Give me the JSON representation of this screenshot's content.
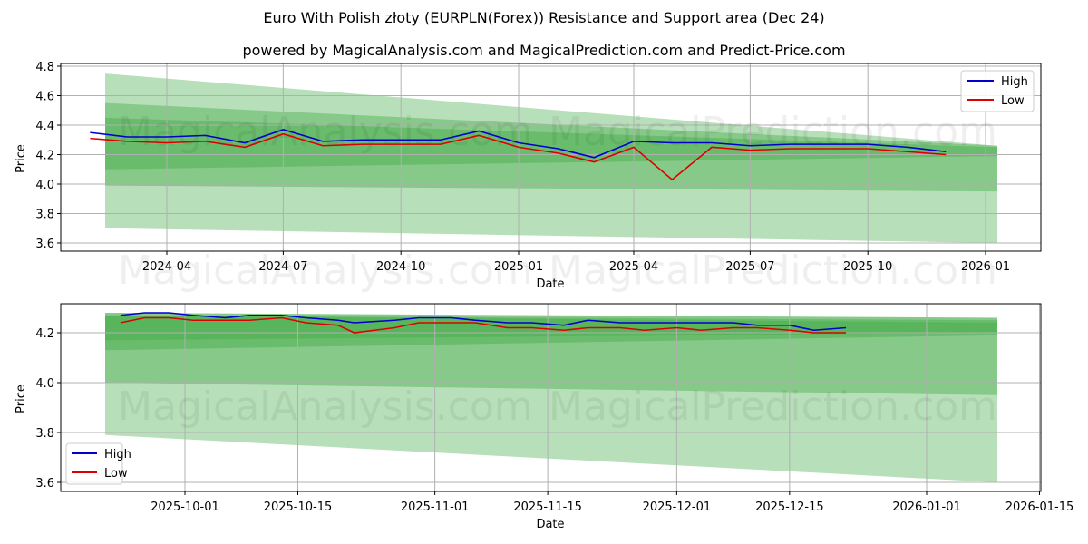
{
  "header": {
    "title": "Euro With Polish złoty (EURPLN(Forex)) Resistance and Support area (Dec 24)",
    "subtitle": "powered by MagicalAnalysis.com and MagicalPrediction.com and Predict-Price.com"
  },
  "watermarks": [
    "MagicalAnalysis.com",
    "MagicalPrediction.com"
  ],
  "colors": {
    "high": "#0000cc",
    "low": "#dd0000",
    "band": "#4caf50",
    "grid": "#b0b0b0"
  },
  "chart_data": [
    {
      "type": "line",
      "title": "Euro With Polish złoty (EURPLN(Forex)) Resistance and Support area (Dec 24)",
      "xlabel": "Date",
      "ylabel": "Price",
      "ylim": [
        3.55,
        4.82
      ],
      "yticks": [
        "3.6",
        "3.8",
        "4.0",
        "4.2",
        "4.4",
        "4.6",
        "4.8"
      ],
      "xticks": [
        "2024-04",
        "2024-07",
        "2024-10",
        "2025-01",
        "2025-04",
        "2025-07",
        "2025-10",
        "2026-01"
      ],
      "legend": {
        "position": "upper right",
        "entries": [
          "High",
          "Low"
        ]
      },
      "grid": true,
      "x": [
        "2024-02",
        "2024-03",
        "2024-04",
        "2024-05",
        "2024-06",
        "2024-07",
        "2024-08",
        "2024-09",
        "2024-10",
        "2024-11",
        "2024-12",
        "2025-01",
        "2025-02",
        "2025-03",
        "2025-04",
        "2025-05",
        "2025-06",
        "2025-07",
        "2025-08",
        "2025-09",
        "2025-10",
        "2025-11",
        "2025-12"
      ],
      "series": [
        {
          "name": "High",
          "values": [
            4.35,
            4.32,
            4.32,
            4.33,
            4.28,
            4.37,
            4.29,
            4.3,
            4.3,
            4.3,
            4.36,
            4.28,
            4.24,
            4.18,
            4.29,
            4.28,
            4.28,
            4.26,
            4.27,
            4.27,
            4.27,
            4.25,
            4.22
          ]
        },
        {
          "name": "Low",
          "values": [
            4.31,
            4.29,
            4.28,
            4.29,
            4.25,
            4.34,
            4.26,
            4.27,
            4.27,
            4.27,
            4.33,
            4.25,
            4.21,
            4.15,
            4.25,
            4.03,
            4.25,
            4.23,
            4.24,
            4.24,
            4.24,
            4.22,
            4.2
          ]
        }
      ],
      "bands": [
        {
          "name": "outer",
          "start": [
            3.7,
            4.75
          ],
          "end": [
            3.6,
            4.26
          ]
        },
        {
          "name": "mid",
          "start": [
            3.99,
            4.55
          ],
          "end": [
            3.95,
            4.26
          ]
        },
        {
          "name": "inner",
          "start": [
            4.1,
            4.45
          ],
          "end": [
            4.19,
            4.25
          ]
        }
      ]
    },
    {
      "type": "line",
      "xlabel": "Date",
      "ylabel": "Price",
      "ylim": [
        3.56,
        4.31
      ],
      "yticks": [
        "3.6",
        "3.8",
        "4.0",
        "4.2"
      ],
      "xticks": [
        "2025-10-01",
        "2025-10-15",
        "2025-11-01",
        "2025-11-15",
        "2025-12-01",
        "2025-12-15",
        "2026-01-01",
        "2026-01-15"
      ],
      "legend": {
        "position": "lower left",
        "entries": [
          "High",
          "Low"
        ]
      },
      "grid": true,
      "x": [
        "2025-09-23",
        "2025-09-26",
        "2025-09-29",
        "2025-10-02",
        "2025-10-06",
        "2025-10-09",
        "2025-10-13",
        "2025-10-16",
        "2025-10-20",
        "2025-10-22",
        "2025-10-27",
        "2025-10-30",
        "2025-11-03",
        "2025-11-06",
        "2025-11-10",
        "2025-11-13",
        "2025-11-17",
        "2025-11-20",
        "2025-11-24",
        "2025-11-27",
        "2025-12-01",
        "2025-12-04",
        "2025-12-08",
        "2025-12-11",
        "2025-12-15",
        "2025-12-18",
        "2025-12-22"
      ],
      "series": [
        {
          "name": "High",
          "values": [
            4.27,
            4.28,
            4.28,
            4.27,
            4.26,
            4.27,
            4.27,
            4.26,
            4.25,
            4.24,
            4.25,
            4.26,
            4.26,
            4.25,
            4.24,
            4.24,
            4.23,
            4.25,
            4.24,
            4.24,
            4.24,
            4.24,
            4.24,
            4.23,
            4.23,
            4.21,
            4.22
          ]
        },
        {
          "name": "Low",
          "values": [
            4.24,
            4.26,
            4.26,
            4.25,
            4.25,
            4.25,
            4.26,
            4.24,
            4.23,
            4.2,
            4.22,
            4.24,
            4.24,
            4.24,
            4.22,
            4.22,
            4.21,
            4.22,
            4.22,
            4.21,
            4.22,
            4.21,
            4.22,
            4.22,
            4.21,
            4.2,
            4.2
          ]
        }
      ],
      "bands": [
        {
          "name": "outer",
          "start": [
            3.79,
            4.28
          ],
          "end": [
            3.6,
            4.26
          ]
        },
        {
          "name": "mid",
          "start": [
            4.0,
            4.28
          ],
          "end": [
            3.95,
            4.26
          ]
        },
        {
          "name": "inner",
          "start": [
            4.13,
            4.27
          ],
          "end": [
            4.19,
            4.25
          ]
        },
        {
          "name": "core",
          "start": [
            4.17,
            4.27
          ],
          "end": [
            4.2,
            4.24
          ]
        }
      ]
    }
  ]
}
